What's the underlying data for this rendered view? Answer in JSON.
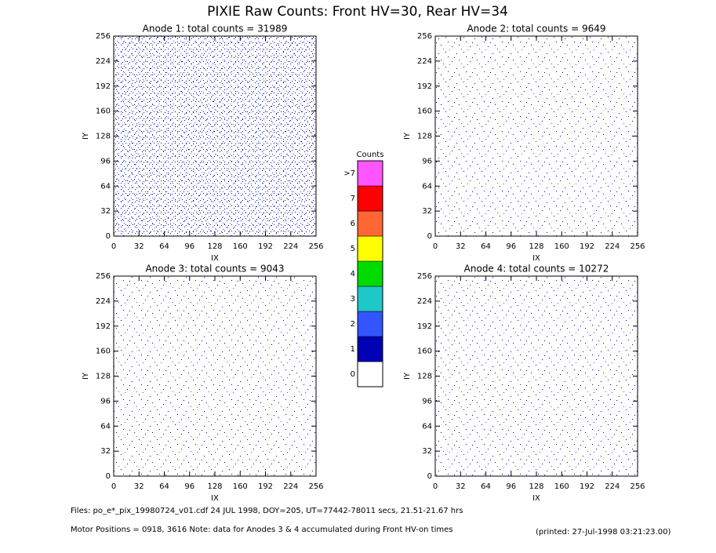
{
  "title": "PIXIE Raw Counts:  Front HV=30, Rear HV=34",
  "chart_data": [
    {
      "type": "heatmap",
      "title": "Anode 1: total counts = 31989",
      "xlabel": "IX",
      "ylabel": "IY",
      "xlim": [
        0,
        256
      ],
      "xticks": [
        0,
        32,
        64,
        96,
        128,
        160,
        192,
        224,
        256
      ],
      "ylim": [
        0,
        256
      ],
      "yticks": [
        0,
        32,
        64,
        96,
        128,
        160,
        192,
        224,
        256
      ]
    },
    {
      "type": "heatmap",
      "title": "Anode 2: total counts = 9649",
      "xlabel": "IX",
      "ylabel": "IY",
      "xlim": [
        0,
        256
      ],
      "xticks": [
        0,
        32,
        64,
        96,
        128,
        160,
        192,
        224,
        256
      ],
      "ylim": [
        0,
        256
      ],
      "yticks": [
        0,
        32,
        64,
        96,
        128,
        160,
        192,
        224,
        256
      ]
    },
    {
      "type": "heatmap",
      "title": "Anode 3: total counts = 9043",
      "xlabel": "IX",
      "ylabel": "IY",
      "xlim": [
        0,
        256
      ],
      "xticks": [
        0,
        32,
        64,
        96,
        128,
        160,
        192,
        224,
        256
      ],
      "ylim": [
        0,
        256
      ],
      "yticks": [
        0,
        32,
        64,
        96,
        128,
        160,
        192,
        224,
        256
      ]
    },
    {
      "type": "heatmap",
      "title": "Anode 4: total counts = 10272",
      "xlabel": "IX",
      "ylabel": "IY",
      "xlim": [
        0,
        256
      ],
      "xticks": [
        0,
        32,
        64,
        96,
        128,
        160,
        192,
        224,
        256
      ],
      "ylim": [
        0,
        256
      ],
      "yticks": [
        0,
        32,
        64,
        96,
        128,
        160,
        192,
        224,
        256
      ]
    }
  ],
  "colorbar": {
    "title": "Counts",
    "ticks": [
      0,
      1,
      2,
      3,
      4,
      5,
      6,
      7,
      {
        "value": 8,
        "label": ">7"
      }
    ],
    "colors": [
      "#ffffff",
      "#0000b4",
      "#3355ff",
      "#1ec8c8",
      "#00dc00",
      "#ffff00",
      "#ff6633",
      "#ff0000",
      "#ff55ff"
    ]
  },
  "footer": {
    "files": "Files: po_e*_pix_19980724_v01.cdf    24 JUL 1998, DOY=205, UT=77442-78011 secs, 21.51-21.67 hrs",
    "motor": "Motor Positions = 0918, 3616    Note: data for Anodes 3 & 4 accumulated during Front HV-on times",
    "printed": "(printed: 27-Jul-1998 03:21:23.00)"
  }
}
